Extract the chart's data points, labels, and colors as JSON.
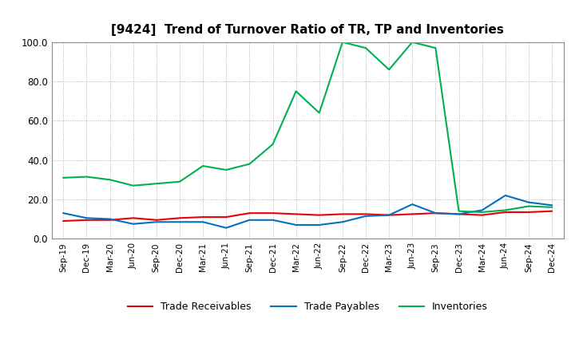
{
  "title": "[9424]  Trend of Turnover Ratio of TR, TP and Inventories",
  "x_labels": [
    "Sep-19",
    "Dec-19",
    "Mar-20",
    "Jun-20",
    "Sep-20",
    "Dec-20",
    "Mar-21",
    "Jun-21",
    "Sep-21",
    "Dec-21",
    "Mar-22",
    "Jun-22",
    "Sep-22",
    "Dec-22",
    "Mar-23",
    "Jun-23",
    "Sep-23",
    "Dec-23",
    "Mar-24",
    "Jun-24",
    "Sep-24",
    "Dec-24"
  ],
  "trade_receivables": [
    9.0,
    9.5,
    9.5,
    10.5,
    9.5,
    10.5,
    11.0,
    11.0,
    13.0,
    13.0,
    12.5,
    12.0,
    12.5,
    12.5,
    12.0,
    12.5,
    13.0,
    12.5,
    12.0,
    13.5,
    13.5,
    14.0
  ],
  "trade_payables": [
    13.0,
    10.5,
    10.0,
    7.5,
    8.5,
    8.5,
    8.5,
    5.5,
    9.5,
    9.5,
    7.0,
    7.0,
    8.5,
    11.5,
    12.0,
    17.5,
    13.0,
    12.5,
    14.5,
    22.0,
    18.5,
    17.0
  ],
  "inventories": [
    31.0,
    31.5,
    30.0,
    27.0,
    28.0,
    29.0,
    37.0,
    35.0,
    38.0,
    48.0,
    75.0,
    64.0,
    100.0,
    97.0,
    86.0,
    100.0,
    97.0,
    14.0,
    13.5,
    14.5,
    16.5,
    16.0
  ],
  "ylim": [
    0.0,
    100.0
  ],
  "yticks": [
    0.0,
    20.0,
    40.0,
    60.0,
    80.0,
    100.0
  ],
  "line_colors": {
    "trade_receivables": "#e8000d",
    "trade_payables": "#0070c0",
    "inventories": "#00b050"
  },
  "background_color": "#ffffff",
  "grid_color": "#a0a0a0",
  "title_fontsize": 11,
  "legend_labels": [
    "Trade Receivables",
    "Trade Payables",
    "Inventories"
  ]
}
